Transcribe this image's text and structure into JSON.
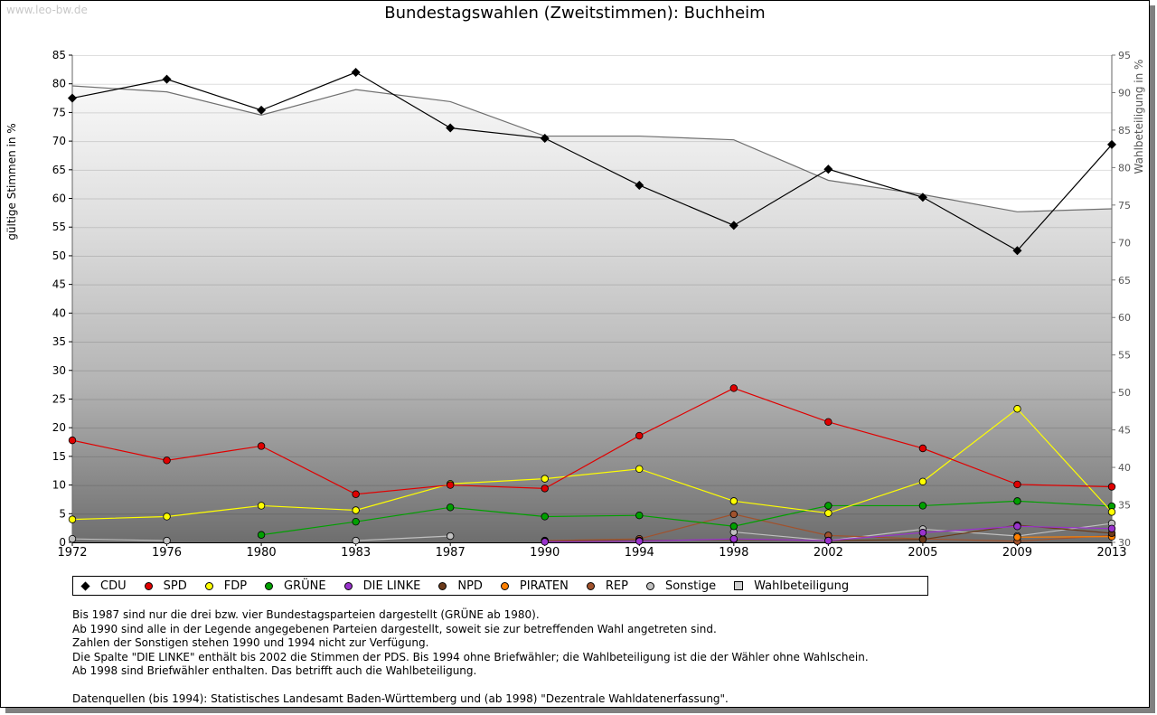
{
  "watermark": "www.leo-bw.de",
  "chart_data": {
    "type": "line",
    "title": "Bundestagswahlen (Zweitstimmen): Buchheim",
    "ylabel": "gültige Stimmen in %",
    "y2label": "Wahlbeteiligung in %",
    "ylim": [
      0,
      85
    ],
    "y2lim": [
      30,
      95
    ],
    "yticks": [
      0,
      5,
      10,
      15,
      20,
      25,
      30,
      35,
      40,
      45,
      50,
      55,
      60,
      65,
      70,
      75,
      80,
      85
    ],
    "y2ticks": [
      30,
      35,
      40,
      45,
      50,
      55,
      60,
      65,
      70,
      75,
      80,
      85,
      90,
      95
    ],
    "x": [
      "1972",
      "1976",
      "1980",
      "1983",
      "1987",
      "1990",
      "1994",
      "1998",
      "2002",
      "2005",
      "2009",
      "2013"
    ],
    "series": [
      {
        "name": "CDU",
        "color": "#000000",
        "values": [
          77.5,
          80.8,
          75.4,
          82.0,
          72.3,
          70.5,
          62.3,
          55.3,
          65.1,
          60.2,
          50.9,
          69.4
        ]
      },
      {
        "name": "SPD",
        "color": "#e00000",
        "values": [
          17.8,
          14.3,
          16.8,
          8.4,
          10.0,
          9.4,
          18.6,
          26.9,
          21.0,
          16.4,
          10.1,
          9.7
        ]
      },
      {
        "name": "FDP",
        "color": "#ffff00",
        "values": [
          4.0,
          4.5,
          6.4,
          5.6,
          10.2,
          11.1,
          12.8,
          7.2,
          5.1,
          10.6,
          23.3,
          5.3
        ]
      },
      {
        "name": "GRÜNE",
        "color": "#00a000",
        "values": [
          null,
          null,
          1.3,
          3.6,
          6.1,
          4.5,
          4.7,
          2.8,
          6.4,
          6.4,
          7.2,
          6.3
        ]
      },
      {
        "name": "DIE LINKE",
        "color": "#9933cc",
        "values": [
          null,
          null,
          null,
          null,
          null,
          0.1,
          0.2,
          0.6,
          0.3,
          1.7,
          2.8,
          2.4
        ]
      },
      {
        "name": "NPD",
        "color": "#6b3a1a",
        "values": [
          null,
          null,
          null,
          null,
          null,
          0.2,
          0.3,
          0.5,
          0.3,
          0.5,
          3.0,
          1.6
        ]
      },
      {
        "name": "PIRATEN",
        "color": "#ff8000",
        "values": [
          null,
          null,
          null,
          null,
          null,
          null,
          null,
          null,
          null,
          null,
          0.9,
          1.0
        ]
      },
      {
        "name": "REP",
        "color": "#a0522d",
        "values": [
          null,
          null,
          null,
          null,
          null,
          0.3,
          0.6,
          4.9,
          1.2,
          0.6,
          0.2,
          1.2
        ]
      },
      {
        "name": "Sonstige",
        "color": "#c0c0c0",
        "values": [
          0.6,
          0.3,
          null,
          0.3,
          1.1,
          null,
          null,
          1.8,
          0.3,
          2.3,
          1.1,
          3.3
        ]
      }
    ],
    "turnout": {
      "name": "Wahlbeteiligung",
      "values": [
        90.9,
        90.1,
        87.0,
        90.4,
        88.8,
        84.2,
        84.2,
        83.7,
        78.3,
        76.4,
        74.1,
        74.5
      ]
    }
  },
  "notes": [
    "Bis 1987 sind nur die drei bzw. vier Bundestagsparteien dargestellt (GRÜNE ab 1980).",
    "Ab 1990 sind alle in der Legende angegebenen Parteien dargestellt, soweit sie zur betreffenden Wahl angetreten sind.",
    "Zahlen der Sonstigen stehen 1990 und 1994 nicht zur Verfügung.",
    "Die Spalte \"DIE LINKE\" enthält bis 2002 die Stimmen der PDS. Bis 1994 ohne Briefwähler; die Wahlbeteiligung ist die der Wähler ohne Wahlschein.",
    "Ab 1998 sind Briefwähler enthalten. Das betrifft auch die Wahlbeteiligung."
  ],
  "source": "Datenquellen (bis 1994): Statistisches Landesamt Baden-Württemberg und (ab 1998) \"Dezentrale Wahldatenerfassung\"."
}
